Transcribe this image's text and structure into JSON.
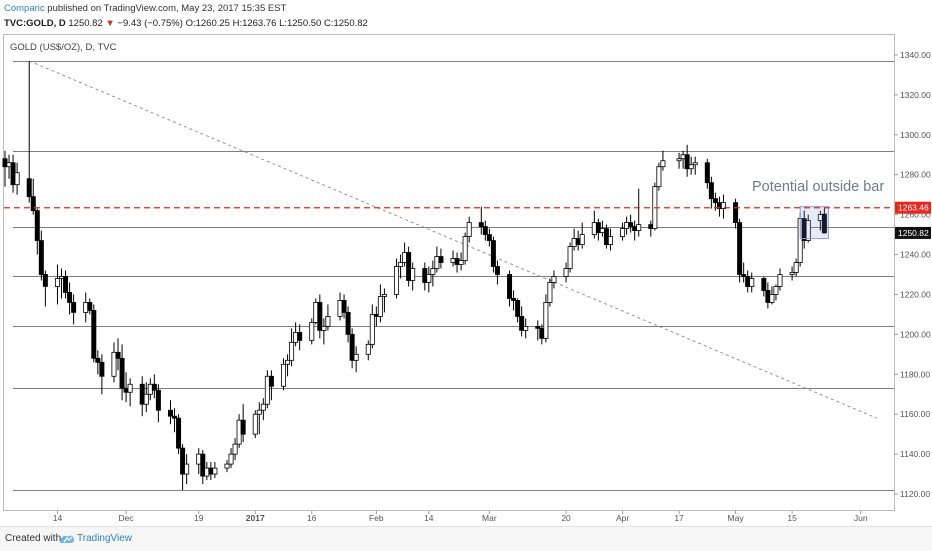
{
  "header": {
    "author": "Comparic",
    "published": "published on TradingView.com, May 23, 2017 15:35 EST",
    "symbol": "TVC:GOLD, D",
    "last": "1250.82",
    "change": "−9.43 (−0.75%)",
    "open": "O:1260.25",
    "high": "H:1263.76",
    "low": "L:1250.50",
    "close": "C:1250.82"
  },
  "footer": {
    "created_with": "Created with",
    "brand": "TradingView"
  },
  "colors": {
    "red_line": "#e8281e",
    "box": "#8a9fd6",
    "grid": "#555555"
  },
  "chart_data": {
    "type": "candlestick",
    "title": "GOLD (US$/OZ), D, TVC",
    "ylim": [
      1112,
      1350
    ],
    "y_ticks": [
      1120,
      1140,
      1160,
      1180,
      1200,
      1220,
      1240,
      1260,
      1280,
      1300,
      1320,
      1340
    ],
    "x_ticks": [
      "14",
      "Dec",
      "19",
      "2017",
      "16",
      "Feb",
      "14",
      "Mar",
      "20",
      "Apr",
      "17",
      "May",
      "15",
      "Jun"
    ],
    "horizontal_levels": [
      1337,
      1292,
      1254,
      1229,
      1204,
      1173,
      1122
    ],
    "resistance_level": 1263.46,
    "resistance_label": "1263.46",
    "last_price": 1250.82,
    "last_price_label": "1250.82",
    "annotation": "Potential outside bar",
    "trendline": {
      "from": [
        "2016-11-07",
        1337
      ],
      "to": [
        "2017-06-05",
        1158
      ]
    },
    "highlight_box": {
      "from": "2017-05-18",
      "to": "2017-05-23",
      "low": 1248,
      "high": 1264
    },
    "ohlc": [
      [
        "2016-11-01",
        1288.0,
        1292.0,
        1274.0,
        1284.0
      ],
      [
        "2016-11-02",
        1284.0,
        1290.0,
        1278.0,
        1286.0
      ],
      [
        "2016-11-03",
        1286.0,
        1290.0,
        1271.0,
        1275.0
      ],
      [
        "2016-11-04",
        1275.0,
        1286.0,
        1270.0,
        1281.0
      ],
      [
        "2016-11-07",
        1278.0,
        1337.0,
        1266.0,
        1269.0
      ],
      [
        "2016-11-08",
        1269.0,
        1278.0,
        1260.0,
        1262.0
      ],
      [
        "2016-11-09",
        1262.0,
        1263.0,
        1240.0,
        1247.0
      ],
      [
        "2016-11-10",
        1247.0,
        1252.0,
        1227.0,
        1230.0
      ],
      [
        "2016-11-11",
        1230.0,
        1232.0,
        1214.0,
        1224.0
      ],
      [
        "2016-11-14",
        1224.0,
        1235.0,
        1215.0,
        1228.0
      ],
      [
        "2016-11-15",
        1228.0,
        1233.0,
        1218.0,
        1229.0
      ],
      [
        "2016-11-16",
        1229.0,
        1232.0,
        1218.0,
        1221.0
      ],
      [
        "2016-11-17",
        1221.0,
        1226.0,
        1210.0,
        1216.0
      ],
      [
        "2016-11-18",
        1216.0,
        1220.0,
        1205.0,
        1211.0
      ],
      [
        "2016-11-21",
        1211.0,
        1221.0,
        1206.0,
        1216.0
      ],
      [
        "2016-11-22",
        1216.0,
        1218.0,
        1210.0,
        1212.0
      ],
      [
        "2016-11-23",
        1212.0,
        1215.0,
        1186.0,
        1188.0
      ],
      [
        "2016-11-24",
        1188.0,
        1192.0,
        1180.0,
        1186.0
      ],
      [
        "2016-11-25",
        1186.0,
        1190.0,
        1170.0,
        1179.0
      ],
      [
        "2016-11-28",
        1179.0,
        1196.0,
        1176.0,
        1191.0
      ],
      [
        "2016-11-29",
        1191.0,
        1198.0,
        1182.0,
        1188.0
      ],
      [
        "2016-11-30",
        1188.0,
        1195.0,
        1167.0,
        1173.0
      ],
      [
        "2016-12-01",
        1173.0,
        1181.0,
        1166.0,
        1171.0
      ],
      [
        "2016-12-02",
        1171.0,
        1178.0,
        1164.0,
        1175.0
      ],
      [
        "2016-12-05",
        1175.0,
        1179.0,
        1159.0,
        1165.0
      ],
      [
        "2016-12-06",
        1165.0,
        1176.0,
        1161.0,
        1170.0
      ],
      [
        "2016-12-07",
        1170.0,
        1178.0,
        1167.0,
        1175.0
      ],
      [
        "2016-12-08",
        1175.0,
        1180.0,
        1168.0,
        1172.0
      ],
      [
        "2016-12-09",
        1172.0,
        1175.0,
        1156.0,
        1162.0
      ],
      [
        "2016-12-12",
        1162.0,
        1167.0,
        1155.0,
        1159.0
      ],
      [
        "2016-12-13",
        1159.0,
        1163.0,
        1151.0,
        1158.0
      ],
      [
        "2016-12-14",
        1158.0,
        1160.0,
        1140.0,
        1143.0
      ],
      [
        "2016-12-15",
        1143.0,
        1145.0,
        1122.0,
        1130.0
      ],
      [
        "2016-12-16",
        1130.0,
        1140.0,
        1125.0,
        1135.0
      ],
      [
        "2016-12-19",
        1135.0,
        1143.0,
        1130.0,
        1140.0
      ],
      [
        "2016-12-20",
        1140.0,
        1142.0,
        1125.0,
        1129.0
      ],
      [
        "2016-12-21",
        1129.0,
        1136.0,
        1127.0,
        1133.0
      ],
      [
        "2016-12-22",
        1133.0,
        1136.0,
        1127.0,
        1130.0
      ],
      [
        "2016-12-23",
        1130.0,
        1136.0,
        1128.0,
        1133.0
      ],
      [
        "2016-12-26",
        1133.0,
        1137.0,
        1131.0,
        1135.0
      ],
      [
        "2016-12-27",
        1135.0,
        1143.0,
        1133.0,
        1140.0
      ],
      [
        "2016-12-28",
        1140.0,
        1148.0,
        1137.0,
        1145.0
      ],
      [
        "2016-12-29",
        1145.0,
        1160.0,
        1143.0,
        1157.0
      ],
      [
        "2016-12-30",
        1157.0,
        1165.0,
        1146.0,
        1150.0
      ],
      [
        "2017-01-02",
        1150.0,
        1162.0,
        1148.0,
        1160.0
      ],
      [
        "2017-01-03",
        1160.0,
        1166.0,
        1150.0,
        1162.0
      ],
      [
        "2017-01-04",
        1162.0,
        1168.0,
        1157.0,
        1165.0
      ],
      [
        "2017-01-05",
        1165.0,
        1182.0,
        1163.0,
        1179.0
      ],
      [
        "2017-01-06",
        1179.0,
        1182.0,
        1167.0,
        1174.0
      ],
      [
        "2017-01-09",
        1174.0,
        1188.0,
        1172.0,
        1185.0
      ],
      [
        "2017-01-10",
        1185.0,
        1190.0,
        1179.0,
        1187.0
      ],
      [
        "2017-01-11",
        1187.0,
        1203.0,
        1184.0,
        1196.0
      ],
      [
        "2017-01-12",
        1196.0,
        1206.0,
        1194.0,
        1201.0
      ],
      [
        "2017-01-13",
        1201.0,
        1205.0,
        1192.0,
        1197.0
      ],
      [
        "2017-01-16",
        1197.0,
        1208.0,
        1195.0,
        1206.0
      ],
      [
        "2017-01-17",
        1206.0,
        1218.0,
        1205.0,
        1216.0
      ],
      [
        "2017-01-18",
        1216.0,
        1220.0,
        1198.0,
        1202.0
      ],
      [
        "2017-01-19",
        1202.0,
        1208.0,
        1195.0,
        1204.0
      ],
      [
        "2017-01-20",
        1204.0,
        1215.0,
        1202.0,
        1209.0
      ],
      [
        "2017-01-23",
        1209.0,
        1221.0,
        1207.0,
        1217.0
      ],
      [
        "2017-01-24",
        1217.0,
        1220.0,
        1208.0,
        1211.0
      ],
      [
        "2017-01-25",
        1211.0,
        1214.0,
        1196.0,
        1200.0
      ],
      [
        "2017-01-26",
        1200.0,
        1203.0,
        1183.0,
        1187.0
      ],
      [
        "2017-01-27",
        1187.0,
        1194.0,
        1181.0,
        1190.0
      ],
      [
        "2017-01-30",
        1190.0,
        1197.0,
        1187.0,
        1195.0
      ],
      [
        "2017-01-31",
        1195.0,
        1215.0,
        1193.0,
        1210.0
      ],
      [
        "2017-02-01",
        1210.0,
        1214.0,
        1204.0,
        1209.0
      ],
      [
        "2017-02-02",
        1209.0,
        1225.0,
        1206.0,
        1219.0
      ],
      [
        "2017-02-03",
        1219.0,
        1223.0,
        1211.0,
        1220.0
      ],
      [
        "2017-02-06",
        1220.0,
        1238.0,
        1218.0,
        1234.0
      ],
      [
        "2017-02-07",
        1234.0,
        1240.0,
        1228.0,
        1236.0
      ],
      [
        "2017-02-08",
        1236.0,
        1246.0,
        1234.0,
        1241.0
      ],
      [
        "2017-02-09",
        1241.0,
        1244.0,
        1224.0,
        1227.0
      ],
      [
        "2017-02-10",
        1227.0,
        1236.0,
        1222.0,
        1233.0
      ],
      [
        "2017-02-13",
        1233.0,
        1236.0,
        1222.0,
        1226.0
      ],
      [
        "2017-02-14",
        1226.0,
        1234.0,
        1221.0,
        1230.0
      ],
      [
        "2017-02-15",
        1230.0,
        1237.0,
        1224.0,
        1233.0
      ],
      [
        "2017-02-16",
        1233.0,
        1244.0,
        1231.0,
        1239.0
      ],
      [
        "2017-02-17",
        1239.0,
        1243.0,
        1233.0,
        1236.0
      ],
      [
        "2017-02-20",
        1236.0,
        1242.0,
        1234.0,
        1238.0
      ],
      [
        "2017-02-21",
        1238.0,
        1241.0,
        1231.0,
        1235.0
      ],
      [
        "2017-02-22",
        1235.0,
        1241.0,
        1232.0,
        1237.0
      ],
      [
        "2017-02-23",
        1237.0,
        1251.0,
        1235.0,
        1249.0
      ],
      [
        "2017-02-24",
        1249.0,
        1259.0,
        1246.0,
        1256.0
      ],
      [
        "2017-02-27",
        1256.0,
        1264.0,
        1250.0,
        1254.0
      ],
      [
        "2017-02-28",
        1254.0,
        1257.0,
        1247.0,
        1250.0
      ],
      [
        "2017-03-01",
        1250.0,
        1253.0,
        1244.0,
        1247.0
      ],
      [
        "2017-03-02",
        1247.0,
        1249.0,
        1231.0,
        1234.0
      ],
      [
        "2017-03-03",
        1234.0,
        1237.0,
        1225.0,
        1230.0
      ],
      [
        "2017-03-06",
        1230.0,
        1232.0,
        1214.0,
        1218.0
      ],
      [
        "2017-03-07",
        1218.0,
        1222.0,
        1212.0,
        1217.0
      ],
      [
        "2017-03-08",
        1217.0,
        1218.0,
        1206.0,
        1209.0
      ],
      [
        "2017-03-09",
        1209.0,
        1214.0,
        1199.0,
        1202.0
      ],
      [
        "2017-03-10",
        1202.0,
        1208.0,
        1198.0,
        1204.0
      ],
      [
        "2017-03-13",
        1204.0,
        1207.0,
        1197.0,
        1203.0
      ],
      [
        "2017-03-14",
        1203.0,
        1205.0,
        1195.0,
        1198.0
      ],
      [
        "2017-03-15",
        1198.0,
        1220.0,
        1196.0,
        1216.0
      ],
      [
        "2017-03-16",
        1216.0,
        1228.0,
        1214.0,
        1226.0
      ],
      [
        "2017-03-17",
        1226.0,
        1232.0,
        1223.0,
        1229.0
      ],
      [
        "2017-03-20",
        1229.0,
        1236.0,
        1226.0,
        1233.0
      ],
      [
        "2017-03-21",
        1233.0,
        1246.0,
        1231.0,
        1244.0
      ],
      [
        "2017-03-22",
        1244.0,
        1253.0,
        1242.0,
        1248.0
      ],
      [
        "2017-03-23",
        1248.0,
        1252.0,
        1242.0,
        1245.0
      ],
      [
        "2017-03-24",
        1245.0,
        1256.0,
        1243.0,
        1250.0
      ],
      [
        "2017-03-27",
        1250.0,
        1262.0,
        1248.0,
        1256.0
      ],
      [
        "2017-03-28",
        1256.0,
        1258.0,
        1247.0,
        1251.0
      ],
      [
        "2017-03-29",
        1251.0,
        1257.0,
        1249.0,
        1253.0
      ],
      [
        "2017-03-30",
        1253.0,
        1255.0,
        1243.0,
        1245.0
      ],
      [
        "2017-03-31",
        1245.0,
        1253.0,
        1242.0,
        1249.0
      ],
      [
        "2017-04-03",
        1249.0,
        1256.0,
        1247.0,
        1253.0
      ],
      [
        "2017-04-04",
        1253.0,
        1259.0,
        1250.0,
        1256.0
      ],
      [
        "2017-04-05",
        1256.0,
        1260.0,
        1251.0,
        1254.0
      ],
      [
        "2017-04-06",
        1254.0,
        1257.0,
        1247.0,
        1252.0
      ],
      [
        "2017-04-07",
        1252.0,
        1273.0,
        1249.0,
        1255.0
      ],
      [
        "2017-04-10",
        1255.0,
        1257.0,
        1249.0,
        1253.0
      ],
      [
        "2017-04-11",
        1253.0,
        1276.0,
        1252.0,
        1274.0
      ],
      [
        "2017-04-12",
        1274.0,
        1286.0,
        1272.0,
        1284.0
      ],
      [
        "2017-04-13",
        1284.0,
        1292.0,
        1282.0,
        1287.0
      ],
      [
        "2017-04-17",
        1287.0,
        1291.0,
        1283.0,
        1288.0
      ],
      [
        "2017-04-18",
        1288.0,
        1292.0,
        1283.0,
        1290.0
      ],
      [
        "2017-04-19",
        1290.0,
        1295.0,
        1279.0,
        1283.0
      ],
      [
        "2017-04-20",
        1283.0,
        1289.0,
        1280.0,
        1285.0
      ],
      [
        "2017-04-21",
        1285.0,
        1289.0,
        1280.0,
        1286.0
      ],
      [
        "2017-04-24",
        1286.0,
        1288.0,
        1273.0,
        1276.0
      ],
      [
        "2017-04-25",
        1276.0,
        1279.0,
        1263.0,
        1268.0
      ],
      [
        "2017-04-26",
        1268.0,
        1271.0,
        1262.0,
        1266.0
      ],
      [
        "2017-04-27",
        1266.0,
        1269.0,
        1259.0,
        1263.0
      ],
      [
        "2017-04-28",
        1263.0,
        1270.0,
        1258.0,
        1266.0
      ],
      [
        "2017-05-01",
        1266.0,
        1268.0,
        1253.0,
        1256.0
      ],
      [
        "2017-05-02",
        1256.0,
        1258.0,
        1226.0,
        1230.0
      ],
      [
        "2017-05-03",
        1230.0,
        1236.0,
        1226.0,
        1229.0
      ],
      [
        "2017-05-04",
        1229.0,
        1232.0,
        1221.0,
        1224.0
      ],
      [
        "2017-05-05",
        1224.0,
        1231.0,
        1221.0,
        1228.0
      ],
      [
        "2017-05-08",
        1228.0,
        1229.0,
        1219.0,
        1222.0
      ],
      [
        "2017-05-09",
        1222.0,
        1226.0,
        1213.0,
        1216.0
      ],
      [
        "2017-05-10",
        1216.0,
        1224.0,
        1215.0,
        1220.0
      ],
      [
        "2017-05-11",
        1220.0,
        1225.0,
        1217.0,
        1224.0
      ],
      [
        "2017-05-12",
        1224.0,
        1233.0,
        1222.0,
        1230.0
      ],
      [
        "2017-05-15",
        1230.0,
        1234.0,
        1227.0,
        1231.0
      ],
      [
        "2017-05-16",
        1231.0,
        1238.0,
        1229.0,
        1236.0
      ],
      [
        "2017-05-17",
        1236.0,
        1261.0,
        1234.0,
        1258.0
      ],
      [
        "2017-05-18",
        1258.0,
        1262.0,
        1243.0,
        1247.0
      ],
      [
        "2017-05-19",
        1247.0,
        1260.0,
        1246.0,
        1257.0
      ],
      [
        "2017-05-22",
        1257.0,
        1262.0,
        1252.0,
        1260.0
      ],
      [
        "2017-05-23",
        1260.25,
        1263.76,
        1250.5,
        1250.82
      ]
    ]
  }
}
